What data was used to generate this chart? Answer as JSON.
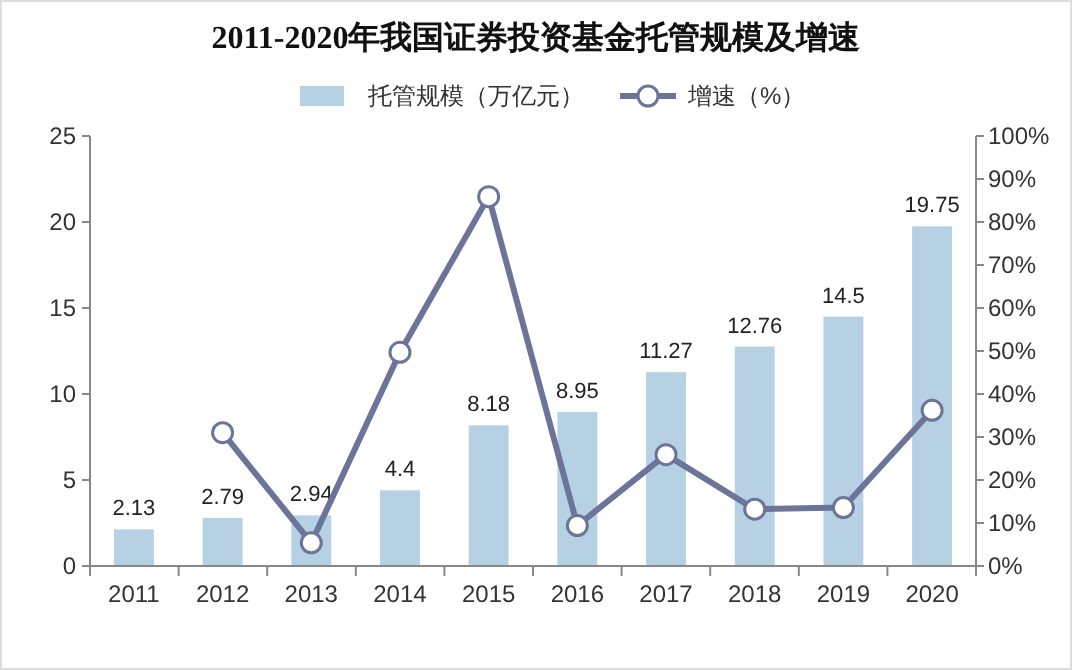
{
  "chart_data": {
    "type": "bar",
    "title": "2011-2020年我国证券投资基金托管规模及增速",
    "categories": [
      "2011",
      "2012",
      "2013",
      "2014",
      "2015",
      "2016",
      "2017",
      "2018",
      "2019",
      "2020"
    ],
    "series": [
      {
        "name": "托管规模（万亿元）",
        "color": "#b6d1e3",
        "values": [
          2.13,
          2.79,
          2.94,
          4.4,
          8.18,
          8.95,
          11.27,
          12.76,
          14.5,
          19.75
        ],
        "value_labels": [
          "2.13",
          "2.79",
          "2.94",
          "4.4",
          "8.18",
          "8.95",
          "11.27",
          "12.76",
          "14.5",
          "19.75"
        ]
      },
      {
        "name": "增速（%）",
        "type": "line",
        "axis": "y2",
        "color": "#6c7599",
        "marker": "circle",
        "values": [
          null,
          31,
          5.4,
          49.7,
          85.9,
          9.4,
          25.9,
          13.2,
          13.6,
          36.2
        ]
      }
    ],
    "legend": "top",
    "grid": false,
    "ylim": [
      0,
      25
    ],
    "yticks": [
      0,
      5,
      10,
      15,
      20,
      25
    ],
    "y2lim": [
      0,
      100
    ],
    "y2ticks": [
      {
        "value": 0,
        "label": "0%"
      },
      {
        "value": 10,
        "label": "10%"
      },
      {
        "value": 20,
        "label": "20%"
      },
      {
        "value": 30,
        "label": "30%"
      },
      {
        "value": 40,
        "label": "40%"
      },
      {
        "value": 50,
        "label": "50%"
      },
      {
        "value": 60,
        "label": "60%"
      },
      {
        "value": 70,
        "label": "70%"
      },
      {
        "value": 80,
        "label": "80%"
      },
      {
        "value": 90,
        "label": "90%"
      },
      {
        "value": 100,
        "label": "100%"
      }
    ]
  }
}
